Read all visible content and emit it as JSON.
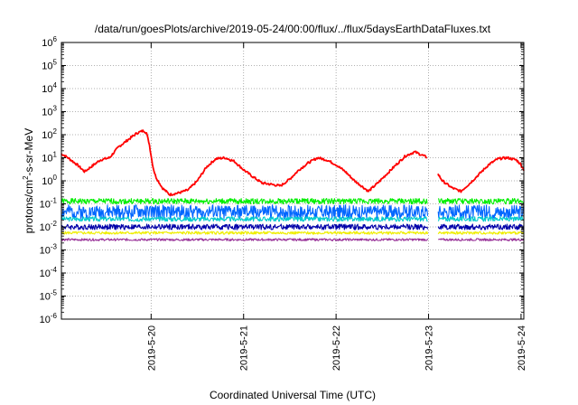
{
  "chart_data": {
    "type": "line",
    "title": "/data/run/goesPlots/archive/2019-05-24/00:00/flux/../flux/5daysEarthDataFluxes.txt",
    "xlabel": "Coordinated Universal Time (UTC)",
    "ylabel_parts": [
      "protons/cm",
      "2",
      "-s-sr-MeV"
    ],
    "y_scale": "log",
    "ylim": [
      1e-06,
      1000000.0
    ],
    "xlim": [
      -0.97,
      4.03
    ],
    "grid": true,
    "x_ticks": [
      {
        "pos": 0,
        "label": "2019-5-20"
      },
      {
        "pos": 1,
        "label": "2019-5-21"
      },
      {
        "pos": 2,
        "label": "2019-5-22"
      },
      {
        "pos": 3,
        "label": "2019-5-23"
      },
      {
        "pos": 4,
        "label": "2019-5-24"
      }
    ],
    "y_ticks": [
      {
        "exp": -6,
        "base": "10",
        "sup": "-6"
      },
      {
        "exp": -5,
        "base": "10",
        "sup": "-5"
      },
      {
        "exp": -4,
        "base": "10",
        "sup": "-4"
      },
      {
        "exp": -3,
        "base": "10",
        "sup": "-3"
      },
      {
        "exp": -2,
        "base": "10",
        "sup": "-2"
      },
      {
        "exp": -1,
        "base": "10",
        "sup": "-1"
      },
      {
        "exp": 0,
        "base": "10",
        "sup": "0"
      },
      {
        "exp": 1,
        "base": "10",
        "sup": "1"
      },
      {
        "exp": 2,
        "base": "10",
        "sup": "2"
      },
      {
        "exp": 3,
        "base": "10",
        "sup": "3"
      },
      {
        "exp": 4,
        "base": "10",
        "sup": "4"
      },
      {
        "exp": 5,
        "base": "10",
        "sup": "5"
      },
      {
        "exp": 6,
        "base": "10",
        "sup": "6"
      }
    ],
    "data_gap_days": [
      2.99,
      3.1
    ],
    "series": [
      {
        "color": "#ff0000",
        "x": [
          -0.97,
          -0.9,
          -0.8,
          -0.72,
          -0.65,
          -0.55,
          -0.45,
          -0.35,
          -0.25,
          -0.15,
          -0.08,
          -0.05,
          -0.02,
          0.02,
          0.05,
          0.12,
          0.2,
          0.3,
          0.4,
          0.5,
          0.6,
          0.7,
          0.8,
          0.9,
          1.0,
          1.1,
          1.2,
          1.3,
          1.4,
          1.5,
          1.6,
          1.7,
          1.8,
          1.9,
          2.0,
          2.1,
          2.2,
          2.3,
          2.35,
          2.45,
          2.55,
          2.65,
          2.75,
          2.85,
          2.95,
          2.99,
          3.1,
          3.15,
          3.25,
          3.35,
          3.45,
          3.55,
          3.65,
          3.75,
          3.85,
          3.95,
          4.0,
          4.03
        ],
        "y": [
          15,
          10,
          5,
          2.5,
          4,
          8,
          10,
          30,
          60,
          120,
          150,
          120,
          40,
          4,
          1.5,
          0.5,
          0.25,
          0.3,
          0.4,
          1,
          4,
          9,
          10,
          7,
          3,
          1.5,
          0.8,
          0.7,
          0.6,
          1.2,
          3,
          6,
          10,
          8,
          5,
          2.5,
          1,
          0.5,
          0.35,
          0.8,
          2,
          5,
          12,
          18,
          12,
          10,
          2,
          1,
          0.5,
          0.35,
          0.8,
          2,
          5,
          9,
          10,
          8,
          5,
          3
        ]
      },
      {
        "color": "#00ee00",
        "x": [
          -0.97,
          4.03
        ],
        "y": [
          0.13,
          0.13
        ],
        "noise": 0.12,
        "seed": 1
      },
      {
        "color": "#0066ff",
        "x": [
          -0.97,
          4.03
        ],
        "y": [
          0.045,
          0.045
        ],
        "noise": 0.3,
        "seed": 2
      },
      {
        "color": "#00cccc",
        "x": [
          -0.97,
          4.03
        ],
        "y": [
          0.022,
          0.022
        ],
        "noise": 0.1,
        "seed": 3
      },
      {
        "color": "#0000aa",
        "x": [
          -0.97,
          4.03
        ],
        "y": [
          0.01,
          0.01
        ],
        "noise": 0.12,
        "seed": 4
      },
      {
        "color": "#eeee00",
        "x": [
          -0.97,
          4.03
        ],
        "y": [
          0.0055,
          0.0055
        ],
        "noise": 0.06,
        "seed": 5
      },
      {
        "color": "#993399",
        "x": [
          -0.97,
          4.03
        ],
        "y": [
          0.0028,
          0.0028
        ],
        "noise": 0.05,
        "seed": 6
      }
    ]
  }
}
